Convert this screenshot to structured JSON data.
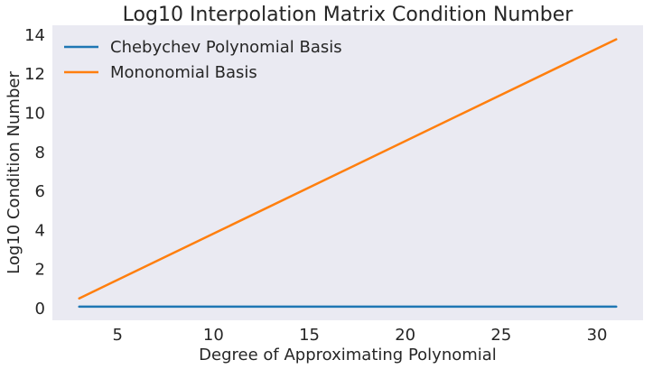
{
  "chart_data": {
    "type": "line",
    "title": "Log10 Interpolation Matrix Condition Number",
    "xlabel": "Degree of Approximating Polynomial",
    "ylabel": "Log10 Condition Number",
    "xlim": [
      1.6,
      32.4
    ],
    "ylim": [
      -0.6,
      14.5
    ],
    "xticks": [
      5,
      10,
      15,
      20,
      25,
      30
    ],
    "yticks": [
      0,
      2,
      4,
      6,
      8,
      10,
      12,
      14
    ],
    "grid": false,
    "background": "#eaeaf2",
    "legend_position": "top-left",
    "series": [
      {
        "name": "Chebychev Polynomial Basis",
        "color": "#1f77b4",
        "x": [
          3,
          31
        ],
        "y": [
          0.1,
          0.1
        ]
      },
      {
        "name": "Mononomial Basis",
        "color": "#ff7f0e",
        "x": [
          3,
          31
        ],
        "y": [
          0.52,
          13.78
        ]
      }
    ]
  }
}
